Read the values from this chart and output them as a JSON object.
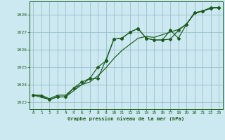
{
  "title": "Graphe pression niveau de la mer (hPa)",
  "background_color": "#cce8f0",
  "grid_color": "#9bbfcc",
  "line_color": "#1a5c1a",
  "xlim": [
    -0.5,
    23.5
  ],
  "ylim": [
    1022.6,
    1028.75
  ],
  "yticks": [
    1023,
    1024,
    1025,
    1026,
    1027,
    1028
  ],
  "xticks": [
    0,
    1,
    2,
    3,
    4,
    5,
    6,
    7,
    8,
    9,
    10,
    11,
    12,
    13,
    14,
    15,
    16,
    17,
    18,
    19,
    20,
    21,
    22,
    23
  ],
  "series1_x": [
    0,
    1,
    2,
    3,
    4,
    5,
    6,
    7,
    8,
    9,
    10,
    11,
    12,
    13,
    14,
    15,
    16,
    17,
    18,
    19,
    20,
    21,
    22,
    23
  ],
  "series1_y": [
    1023.4,
    1023.35,
    1023.15,
    1023.3,
    1023.3,
    1023.8,
    1024.15,
    1024.35,
    1024.35,
    1025.4,
    1026.6,
    1026.65,
    1027.0,
    1027.2,
    1026.65,
    1026.55,
    1026.55,
    1026.6,
    1027.1,
    1027.45,
    1028.1,
    1028.2,
    1028.35,
    1028.4
  ],
  "series2_x": [
    0,
    1,
    2,
    3,
    4,
    5,
    6,
    7,
    8,
    9,
    10,
    11,
    12,
    13,
    14,
    15,
    16,
    17,
    18,
    19,
    20,
    21,
    22,
    23
  ],
  "series2_y": [
    1023.4,
    1023.4,
    1023.2,
    1023.4,
    1023.4,
    1023.8,
    1024.0,
    1024.15,
    1024.5,
    1024.95,
    1025.5,
    1025.95,
    1026.3,
    1026.65,
    1026.75,
    1026.7,
    1026.85,
    1027.0,
    1027.15,
    1027.45,
    1028.05,
    1028.2,
    1028.35,
    1028.4
  ],
  "series3_x": [
    0,
    2,
    3,
    4,
    7,
    8,
    9,
    10,
    11,
    12,
    13,
    14,
    15,
    16,
    17,
    18,
    19,
    20,
    21,
    22,
    23
  ],
  "series3_y": [
    1023.4,
    1023.15,
    1023.3,
    1023.3,
    1024.35,
    1025.0,
    1025.35,
    1026.6,
    1026.65,
    1027.0,
    1027.2,
    1026.65,
    1026.55,
    1026.55,
    1027.1,
    1026.65,
    1027.45,
    1028.1,
    1028.2,
    1028.4,
    1028.4
  ]
}
